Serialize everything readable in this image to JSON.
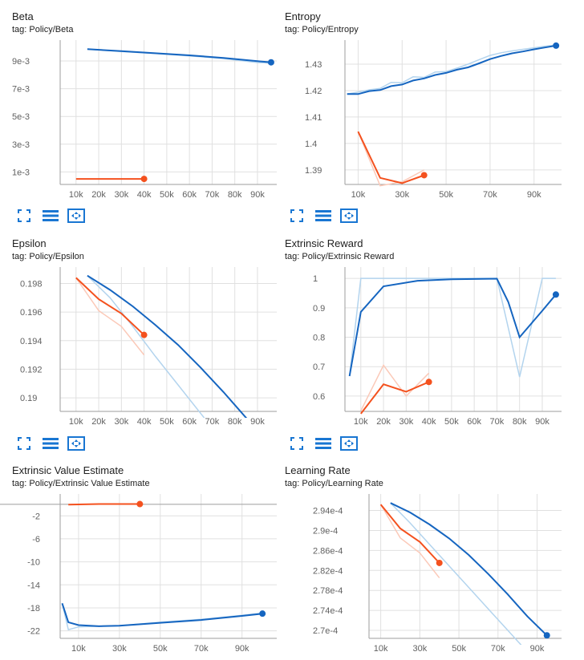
{
  "colors": {
    "blue": "#1565c0",
    "blue_light": "#b3d4ee",
    "orange": "#f4511e",
    "orange_light": "#fbc9b8",
    "grid": "#e0e0e0",
    "axis": "#9e9e9e"
  },
  "icons": [
    "fullscreen-icon",
    "toggle-log-scale-icon",
    "fit-domain-icon"
  ],
  "chart_data": [
    {
      "type": "line",
      "title": "Beta",
      "tag": "tag: Policy/Beta",
      "xticks": [
        "10k",
        "20k",
        "30k",
        "40k",
        "50k",
        "60k",
        "70k",
        "80k",
        "90k"
      ],
      "yticks": [
        "9e-3",
        "7e-3",
        "5e-3",
        "3e-3",
        "1e-3"
      ],
      "xlim": [
        3000,
        98500
      ],
      "ylim": [
        0.0001,
        0.0105
      ],
      "grid": true,
      "series": [
        {
          "color": "orange",
          "smoothed": [
            [
              10000,
              0.0005
            ],
            [
              20000,
              0.0005
            ],
            [
              30000,
              0.0005
            ],
            [
              40000,
              0.0005
            ]
          ],
          "raw": []
        },
        {
          "color": "blue",
          "smoothed": [
            [
              15000,
              0.00985
            ],
            [
              30000,
              0.0097
            ],
            [
              45000,
              0.00955
            ],
            [
              60000,
              0.0094
            ],
            [
              75000,
              0.00922
            ],
            [
              90000,
              0.00898
            ],
            [
              96000,
              0.0089
            ]
          ],
          "raw": [
            [
              15000,
              0.00985
            ],
            [
              30000,
              0.00968
            ],
            [
              45000,
              0.00953
            ],
            [
              60000,
              0.00936
            ],
            [
              75000,
              0.00917
            ],
            [
              90000,
              0.00888
            ],
            [
              96000,
              0.00885
            ]
          ]
        }
      ]
    },
    {
      "type": "line",
      "title": "Entropy",
      "tag": "tag: Policy/Entropy",
      "xticks": [
        "10k",
        "30k",
        "50k",
        "70k",
        "90k"
      ],
      "yticks": [
        "1.43",
        "1.42",
        "1.41",
        "1.4",
        "1.39"
      ],
      "xlim": [
        4000,
        102500
      ],
      "ylim": [
        1.3845,
        1.4391
      ],
      "grid": true,
      "series": [
        {
          "color": "orange",
          "smoothed": [
            [
              10000,
              1.4045
            ],
            [
              20000,
              1.387
            ],
            [
              30000,
              1.385
            ],
            [
              40000,
              1.388
            ]
          ],
          "raw": [
            [
              10000,
              1.4045
            ],
            [
              20000,
              1.384
            ],
            [
              30000,
              1.3855
            ],
            [
              40000,
              1.39
            ]
          ]
        },
        {
          "color": "blue",
          "smoothed": [
            [
              5000,
              1.4187
            ],
            [
              10000,
              1.4187
            ],
            [
              15000,
              1.4198
            ],
            [
              20000,
              1.4202
            ],
            [
              25000,
              1.4217
            ],
            [
              30000,
              1.4223
            ],
            [
              35000,
              1.4238
            ],
            [
              40000,
              1.4246
            ],
            [
              45000,
              1.4259
            ],
            [
              50000,
              1.4267
            ],
            [
              55000,
              1.4279
            ],
            [
              60000,
              1.4288
            ],
            [
              65000,
              1.4303
            ],
            [
              70000,
              1.4319
            ],
            [
              75000,
              1.4331
            ],
            [
              80000,
              1.4341
            ],
            [
              85000,
              1.4348
            ],
            [
              90000,
              1.4356
            ],
            [
              95000,
              1.4363
            ],
            [
              100000,
              1.437
            ]
          ],
          "raw": [
            [
              5000,
              1.4187
            ],
            [
              10000,
              1.4194
            ],
            [
              15000,
              1.4203
            ],
            [
              20000,
              1.4208
            ],
            [
              25000,
              1.4231
            ],
            [
              30000,
              1.423
            ],
            [
              35000,
              1.4252
            ],
            [
              40000,
              1.425
            ],
            [
              45000,
              1.427
            ],
            [
              50000,
              1.4272
            ],
            [
              55000,
              1.4285
            ],
            [
              60000,
              1.43
            ],
            [
              65000,
              1.4317
            ],
            [
              70000,
              1.4333
            ],
            [
              75000,
              1.4343
            ],
            [
              80000,
              1.435
            ],
            [
              85000,
              1.4356
            ],
            [
              90000,
              1.4362
            ],
            [
              95000,
              1.4368
            ],
            [
              100000,
              1.4372
            ]
          ]
        }
      ]
    },
    {
      "type": "line",
      "title": "Epsilon",
      "tag": "tag: Policy/Epsilon",
      "xticks": [
        "10k",
        "20k",
        "30k",
        "40k",
        "50k",
        "60k",
        "70k",
        "80k",
        "90k"
      ],
      "yticks": [
        "0.198",
        "0.196",
        "0.194",
        "0.192",
        "0.19"
      ],
      "xlim": [
        3000,
        98500
      ],
      "ylim": [
        0.18905,
        0.19915
      ],
      "grid": true,
      "series": [
        {
          "color": "orange",
          "smoothed": [
            [
              10000,
              0.1984
            ],
            [
              20000,
              0.1969
            ],
            [
              30000,
              0.1959
            ],
            [
              40000,
              0.1944
            ]
          ],
          "raw": [
            [
              10000,
              0.1984
            ],
            [
              20000,
              0.1961
            ],
            [
              30000,
              0.195
            ],
            [
              40000,
              0.193
            ]
          ]
        },
        {
          "color": "blue",
          "smoothed": [
            [
              15000,
              0.19855
            ],
            [
              25000,
              0.19755
            ],
            [
              35000,
              0.1964
            ],
            [
              45000,
              0.1951
            ],
            [
              55000,
              0.1937
            ],
            [
              65000,
              0.1921
            ],
            [
              75000,
              0.1904
            ],
            [
              85000,
              0.1886
            ],
            [
              95000,
              0.1868
            ]
          ],
          "raw": [
            [
              15000,
              0.19855
            ],
            [
              25000,
              0.197
            ],
            [
              35000,
              0.195
            ],
            [
              45000,
              0.1929
            ],
            [
              55000,
              0.1909
            ],
            [
              65000,
              0.1889
            ],
            [
              75000,
              0.1869
            ]
          ]
        }
      ]
    },
    {
      "type": "line",
      "title": "Extrinsic Reward",
      "tag": "tag: Policy/Extrinsic Reward",
      "xticks": [
        "10k",
        "20k",
        "30k",
        "40k",
        "50k",
        "60k",
        "70k",
        "80k",
        "90k"
      ],
      "yticks": [
        "1",
        "0.9",
        "0.8",
        "0.7",
        "0.6"
      ],
      "xlim": [
        3000,
        98500
      ],
      "ylim": [
        0.548,
        1.0385
      ],
      "grid": true,
      "series": [
        {
          "color": "orange",
          "smoothed": [
            [
              10000,
              0.54
            ],
            [
              20000,
              0.64
            ],
            [
              30000,
              0.615
            ],
            [
              40000,
              0.648
            ]
          ],
          "raw": [
            [
              10000,
              0.55
            ],
            [
              20000,
              0.705
            ],
            [
              30000,
              0.6
            ],
            [
              40000,
              0.678
            ]
          ]
        },
        {
          "color": "blue",
          "smoothed": [
            [
              5000,
              0.668
            ],
            [
              10000,
              0.886
            ],
            [
              20000,
              0.973
            ],
            [
              35000,
              0.992
            ],
            [
              50000,
              0.997
            ],
            [
              70000,
              0.999
            ],
            [
              75000,
              0.92
            ],
            [
              80000,
              0.8
            ],
            [
              90000,
              0.89
            ],
            [
              96000,
              0.945
            ]
          ],
          "raw": [
            [
              5000,
              0.668
            ],
            [
              10000,
              1.0
            ],
            [
              20000,
              1.0
            ],
            [
              35000,
              1.0
            ],
            [
              50000,
              1.0
            ],
            [
              70000,
              1.0
            ],
            [
              80000,
              0.665
            ],
            [
              90000,
              1.0
            ],
            [
              96000,
              1.0
            ]
          ]
        }
      ]
    },
    {
      "type": "line",
      "title": "Extrinsic Value Estimate",
      "tag": "tag: Policy/Extrinsic Value Estimate",
      "xticks": [
        "10k",
        "30k",
        "50k",
        "70k",
        "90k"
      ],
      "yticks": [
        "-2",
        "-6",
        "-10",
        "-14",
        "-18",
        "-22"
      ],
      "xlim": [
        1000,
        107000
      ],
      "ylim": [
        -23.3,
        1.8
      ],
      "grid": true,
      "zero_line": 0,
      "series": [
        {
          "color": "orange",
          "smoothed": [
            [
              5000,
              -0.05
            ],
            [
              20000,
              0.05
            ],
            [
              40000,
              0.05
            ]
          ],
          "raw": []
        },
        {
          "color": "blue",
          "smoothed": [
            [
              2000,
              -17.2
            ],
            [
              5000,
              -20.5
            ],
            [
              10000,
              -21.0
            ],
            [
              20000,
              -21.2
            ],
            [
              30000,
              -21.1
            ],
            [
              50000,
              -20.6
            ],
            [
              70000,
              -20.1
            ],
            [
              90000,
              -19.4
            ],
            [
              100000,
              -19.0
            ]
          ],
          "raw": [
            [
              2000,
              -17.2
            ],
            [
              5000,
              -21.8
            ],
            [
              10000,
              -21.3
            ],
            [
              20000,
              -21.2
            ],
            [
              30000,
              -21.1
            ],
            [
              50000,
              -20.5
            ],
            [
              70000,
              -20.0
            ],
            [
              90000,
              -19.3
            ],
            [
              100000,
              -18.9
            ]
          ]
        }
      ]
    },
    {
      "type": "line",
      "title": "Learning Rate",
      "tag": "tag: Policy/Learning Rate",
      "xticks": [
        "10k",
        "30k",
        "50k",
        "70k",
        "90k"
      ],
      "yticks": [
        "2.94e-4",
        "2.9e-4",
        "2.86e-4",
        "2.82e-4",
        "2.78e-4",
        "2.74e-4",
        "2.7e-4"
      ],
      "xlim": [
        4000,
        102500
      ],
      "ylim": [
        0.0002684,
        0.0002973
      ],
      "grid": true,
      "series": [
        {
          "color": "orange",
          "smoothed": [
            [
              10000,
              0.0002952
            ],
            [
              20000,
              0.0002904
            ],
            [
              30000,
              0.0002877
            ],
            [
              40000,
              0.0002835
            ]
          ],
          "raw": [
            [
              10000,
              0.0002952
            ],
            [
              20000,
              0.0002885
            ],
            [
              30000,
              0.0002855
            ],
            [
              40000,
              0.0002805
            ]
          ]
        },
        {
          "color": "blue",
          "smoothed": [
            [
              15000,
              0.0002955
            ],
            [
              25000,
              0.0002936
            ],
            [
              35000,
              0.0002912
            ],
            [
              45000,
              0.0002884
            ],
            [
              55000,
              0.0002851
            ],
            [
              65000,
              0.0002813
            ],
            [
              75000,
              0.0002772
            ],
            [
              85000,
              0.0002728
            ],
            [
              95000,
              0.000269
            ]
          ],
          "raw": [
            [
              15000,
              0.0002955
            ],
            [
              25000,
              0.0002915
            ],
            [
              35000,
              0.0002872
            ],
            [
              45000,
              0.0002829
            ],
            [
              55000,
              0.0002786
            ],
            [
              65000,
              0.0002743
            ],
            [
              75000,
              0.00027
            ],
            [
              85000,
              0.0002657
            ]
          ]
        }
      ]
    }
  ]
}
